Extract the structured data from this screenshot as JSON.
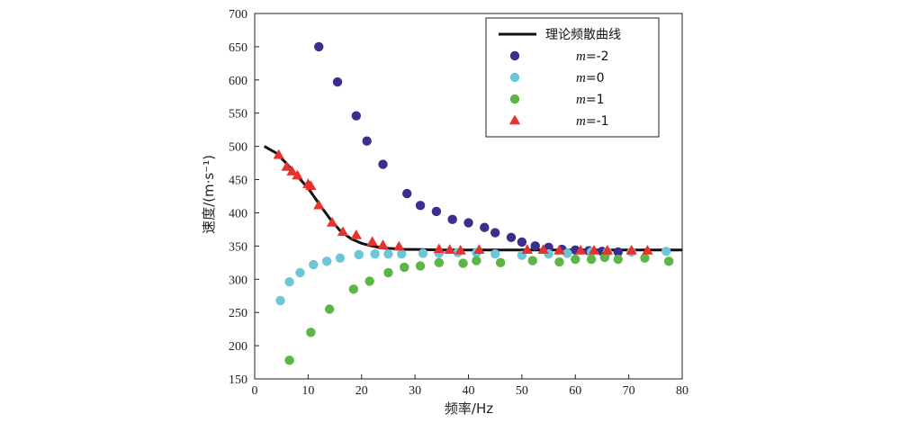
{
  "chart_data": {
    "type": "scatter",
    "xlabel": "频率/Hz",
    "ylabel": "速度/(m·s⁻¹)",
    "xlim": [
      0,
      80
    ],
    "ylim": [
      150,
      700
    ],
    "xticks": [
      "0",
      "10",
      "20",
      "30",
      "40",
      "50",
      "60",
      "70",
      "80"
    ],
    "yticks": [
      "150",
      "200",
      "250",
      "300",
      "350",
      "400",
      "450",
      "500",
      "550",
      "600",
      "650",
      "700"
    ],
    "grid": false,
    "legend_position": "top-right",
    "series": [
      {
        "name": "理论频散曲线",
        "kind": "line",
        "color": "#111111",
        "x": [
          1.8,
          4,
          6,
          8,
          10,
          12,
          14,
          16,
          18,
          20,
          22,
          24,
          26,
          28,
          30,
          35,
          40,
          45,
          50,
          60,
          70,
          80
        ],
        "y": [
          500,
          490,
          474,
          455,
          437,
          414,
          392,
          373,
          361,
          354,
          350,
          347,
          346,
          345,
          345,
          344,
          344,
          344,
          344,
          344,
          344,
          344
        ]
      },
      {
        "name": "m=-2",
        "kind": "scatter",
        "marker": "circle",
        "color": "#3a2f8f",
        "x": [
          12,
          15.5,
          19,
          21,
          24,
          28.5,
          31,
          34,
          37,
          40,
          43,
          45,
          48,
          50,
          52.5,
          55,
          57.5,
          60,
          62.5,
          65,
          68
        ],
        "y": [
          650,
          597,
          546,
          508,
          473,
          429,
          411,
          402,
          390,
          385,
          378,
          370,
          363,
          356,
          350,
          348,
          345,
          344,
          343,
          342,
          341
        ]
      },
      {
        "name": "m=0",
        "kind": "scatter",
        "marker": "circle",
        "color": "#6cc6d8",
        "x": [
          4.8,
          6.5,
          8.5,
          11,
          13.5,
          16,
          19.5,
          22.5,
          25,
          27.5,
          31.5,
          34.5,
          38,
          41.5,
          45,
          50,
          55,
          58.5,
          63,
          66,
          70.5,
          77
        ],
        "y": [
          268,
          296,
          310,
          322,
          327,
          332,
          337,
          338,
          338,
          338,
          339,
          339,
          340,
          340,
          338,
          336,
          338,
          339,
          341,
          341,
          341,
          342
        ]
      },
      {
        "name": "m=1",
        "kind": "scatter",
        "marker": "circle",
        "color": "#5bb646",
        "x": [
          6.5,
          10.5,
          14,
          18.5,
          21.5,
          25,
          28,
          31,
          34.5,
          39,
          41.5,
          46,
          52,
          57,
          60,
          63,
          65.5,
          68,
          73,
          77.5
        ],
        "y": [
          178,
          220,
          255,
          285,
          297,
          310,
          318,
          320,
          325,
          324,
          328,
          325,
          328,
          326,
          330,
          330,
          333,
          330,
          332,
          327
        ]
      },
      {
        "name": "m=-1",
        "kind": "scatter",
        "marker": "triangle",
        "color": "#e8322e",
        "x": [
          4.5,
          6,
          7,
          8,
          10,
          10.5,
          12,
          14.5,
          16.5,
          19,
          22,
          24,
          27,
          34.5,
          36.5,
          38.5,
          42,
          51,
          54,
          57,
          61,
          63.5,
          66,
          70.5,
          73.5
        ],
        "y": [
          487,
          469,
          462,
          456,
          443,
          440,
          411,
          385,
          371,
          366,
          356,
          351,
          349,
          345,
          344,
          343,
          344,
          344,
          344,
          343,
          343,
          343,
          343,
          343,
          343
        ]
      }
    ]
  }
}
